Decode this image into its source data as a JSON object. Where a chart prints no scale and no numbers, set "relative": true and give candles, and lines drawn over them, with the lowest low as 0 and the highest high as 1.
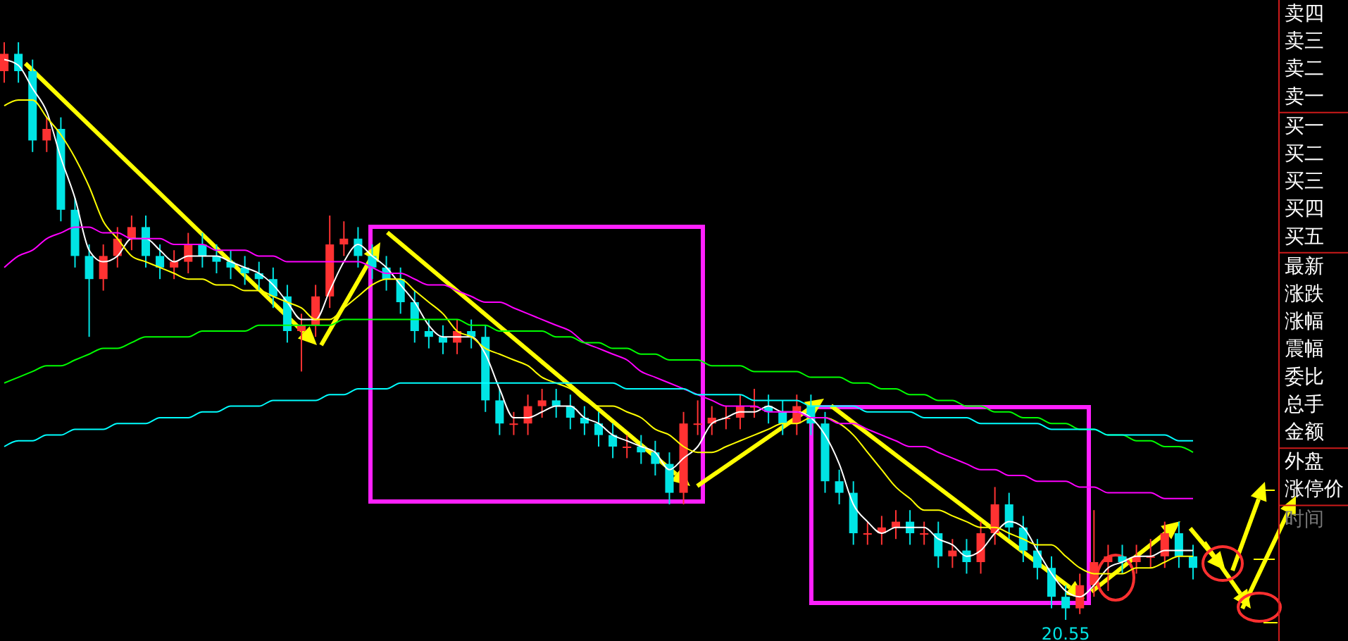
{
  "chart_data": [
    {
      "type": "candlestick",
      "relative": true,
      "categories": [
        null,
        null,
        null,
        null,
        null,
        null,
        null,
        null,
        null,
        null,
        null,
        null,
        null,
        null,
        null,
        null,
        null,
        null,
        null,
        null,
        null,
        null,
        null,
        null,
        null,
        null,
        null,
        null,
        null,
        null,
        null,
        null,
        null,
        null,
        null,
        null,
        null,
        null,
        null,
        null,
        null,
        null,
        null,
        null,
        null,
        null,
        null,
        null,
        null,
        null,
        null,
        null,
        null,
        null,
        null,
        null,
        null,
        null,
        null,
        null,
        null,
        null,
        null,
        null,
        null,
        null,
        null,
        null,
        null,
        null,
        null,
        null,
        null,
        null,
        null,
        null,
        null,
        null,
        null,
        null,
        null,
        null,
        null,
        null,
        null
      ],
      "ohlc": [
        [
          0.95,
          1.0,
          0.93,
          0.98
        ],
        [
          0.98,
          1.0,
          0.93,
          0.95
        ],
        [
          0.95,
          0.97,
          0.81,
          0.83
        ],
        [
          0.83,
          0.87,
          0.81,
          0.85
        ],
        [
          0.85,
          0.87,
          0.69,
          0.71
        ],
        [
          0.71,
          0.73,
          0.61,
          0.63
        ],
        [
          0.63,
          0.65,
          0.49,
          0.59
        ],
        [
          0.59,
          0.65,
          0.57,
          0.63
        ],
        [
          0.63,
          0.68,
          0.61,
          0.66
        ],
        [
          0.66,
          0.7,
          0.64,
          0.68
        ],
        [
          0.68,
          0.7,
          0.61,
          0.63
        ],
        [
          0.63,
          0.65,
          0.59,
          0.61
        ],
        [
          0.61,
          0.64,
          0.59,
          0.62
        ],
        [
          0.62,
          0.67,
          0.6,
          0.65
        ],
        [
          0.65,
          0.67,
          0.61,
          0.63
        ],
        [
          0.63,
          0.65,
          0.6,
          0.62
        ],
        [
          0.62,
          0.64,
          0.59,
          0.61
        ],
        [
          0.61,
          0.63,
          0.58,
          0.6
        ],
        [
          0.6,
          0.62,
          0.57,
          0.59
        ],
        [
          0.59,
          0.61,
          0.54,
          0.56
        ],
        [
          0.56,
          0.58,
          0.48,
          0.5
        ],
        [
          0.5,
          0.53,
          0.43,
          0.51
        ],
        [
          0.51,
          0.58,
          0.49,
          0.56
        ],
        [
          0.56,
          0.7,
          0.54,
          0.65
        ],
        [
          0.65,
          0.69,
          0.63,
          0.66
        ],
        [
          0.66,
          0.68,
          0.61,
          0.63
        ],
        [
          0.63,
          0.65,
          0.59,
          0.61
        ],
        [
          0.61,
          0.63,
          0.57,
          0.59
        ],
        [
          0.59,
          0.61,
          0.53,
          0.55
        ],
        [
          0.55,
          0.57,
          0.48,
          0.5
        ],
        [
          0.5,
          0.52,
          0.47,
          0.49
        ],
        [
          0.49,
          0.51,
          0.46,
          0.48
        ],
        [
          0.48,
          0.52,
          0.46,
          0.5
        ],
        [
          0.5,
          0.52,
          0.47,
          0.49
        ],
        [
          0.49,
          0.51,
          0.36,
          0.38
        ],
        [
          0.38,
          0.4,
          0.32,
          0.34
        ],
        [
          0.34,
          0.36,
          0.32,
          0.34
        ],
        [
          0.34,
          0.39,
          0.32,
          0.37
        ],
        [
          0.37,
          0.4,
          0.35,
          0.38
        ],
        [
          0.38,
          0.4,
          0.35,
          0.37
        ],
        [
          0.37,
          0.39,
          0.33,
          0.35
        ],
        [
          0.35,
          0.37,
          0.32,
          0.34
        ],
        [
          0.34,
          0.36,
          0.3,
          0.32
        ],
        [
          0.32,
          0.34,
          0.28,
          0.3
        ],
        [
          0.3,
          0.32,
          0.28,
          0.3
        ],
        [
          0.3,
          0.32,
          0.27,
          0.29
        ],
        [
          0.29,
          0.31,
          0.25,
          0.27
        ],
        [
          0.27,
          0.29,
          0.2,
          0.22
        ],
        [
          0.22,
          0.36,
          0.2,
          0.34
        ],
        [
          0.34,
          0.38,
          0.32,
          0.34
        ],
        [
          0.34,
          0.37,
          0.32,
          0.35
        ],
        [
          0.35,
          0.37,
          0.33,
          0.35
        ],
        [
          0.35,
          0.39,
          0.33,
          0.37
        ],
        [
          0.37,
          0.4,
          0.35,
          0.37
        ],
        [
          0.37,
          0.39,
          0.34,
          0.36
        ],
        [
          0.36,
          0.38,
          0.32,
          0.34
        ],
        [
          0.34,
          0.39,
          0.32,
          0.37
        ],
        [
          0.37,
          0.39,
          0.32,
          0.34
        ],
        [
          0.34,
          0.36,
          0.22,
          0.24
        ],
        [
          0.24,
          0.26,
          0.2,
          0.22
        ],
        [
          0.22,
          0.24,
          0.13,
          0.15
        ],
        [
          0.15,
          0.17,
          0.13,
          0.15
        ],
        [
          0.15,
          0.18,
          0.13,
          0.16
        ],
        [
          0.16,
          0.19,
          0.14,
          0.17
        ],
        [
          0.17,
          0.19,
          0.13,
          0.15
        ],
        [
          0.15,
          0.17,
          0.13,
          0.15
        ],
        [
          0.15,
          0.17,
          0.09,
          0.11
        ],
        [
          0.11,
          0.14,
          0.09,
          0.12
        ],
        [
          0.12,
          0.14,
          0.08,
          0.1
        ],
        [
          0.1,
          0.17,
          0.08,
          0.15
        ],
        [
          0.15,
          0.23,
          0.13,
          0.2
        ],
        [
          0.2,
          0.22,
          0.14,
          0.16
        ],
        [
          0.16,
          0.18,
          0.1,
          0.12
        ],
        [
          0.12,
          0.14,
          0.07,
          0.09
        ],
        [
          0.09,
          0.11,
          0.02,
          0.04
        ],
        [
          0.04,
          0.06,
          0.0,
          0.02
        ],
        [
          0.02,
          0.08,
          0.01,
          0.06
        ],
        [
          0.06,
          0.19,
          0.04,
          0.1
        ],
        [
          0.1,
          0.13,
          0.05,
          0.11
        ],
        [
          0.11,
          0.13,
          0.08,
          0.1
        ],
        [
          0.1,
          0.13,
          0.08,
          0.11
        ],
        [
          0.11,
          0.14,
          0.09,
          0.11
        ],
        [
          0.11,
          0.17,
          0.09,
          0.15
        ],
        [
          0.15,
          0.17,
          0.09,
          0.11
        ],
        [
          0.11,
          0.13,
          0.07,
          0.09
        ]
      ],
      "colors": [
        "#ff3232",
        "#00e4e4",
        "#00e4e4",
        "#ff3232",
        "#00e4e4",
        "#00e4e4",
        "#00e4e4",
        "#ff3232",
        "#ff3232",
        "#ff3232",
        "#00e4e4",
        "#00e4e4",
        "#ff3232",
        "#ff3232",
        "#00e4e4",
        "#00e4e4",
        "#00e4e4",
        "#00e4e4",
        "#00e4e4",
        "#00e4e4",
        "#00e4e4",
        "#ff3232",
        "#ff3232",
        "#ff3232",
        "#ff3232",
        "#00e4e4",
        "#00e4e4",
        "#00e4e4",
        "#00e4e4",
        "#00e4e4",
        "#00e4e4",
        "#00e4e4",
        "#ff3232",
        "#00e4e4",
        "#00e4e4",
        "#00e4e4",
        "#ff3232",
        "#ff3232",
        "#ff3232",
        "#00e4e4",
        "#00e4e4",
        "#00e4e4",
        "#00e4e4",
        "#00e4e4",
        "#ff3232",
        "#00e4e4",
        "#00e4e4",
        "#00e4e4",
        "#ff3232",
        "#ff3232",
        "#ff3232",
        "#ff3232",
        "#ff3232",
        "#ff3232",
        "#00e4e4",
        "#00e4e4",
        "#ff3232",
        "#00e4e4",
        "#00e4e4",
        "#00e4e4",
        "#00e4e4",
        "#ff3232",
        "#ff3232",
        "#ff3232",
        "#00e4e4",
        "#ff3232",
        "#00e4e4",
        "#ff3232",
        "#00e4e4",
        "#ff3232",
        "#ff3232",
        "#00e4e4",
        "#00e4e4",
        "#00e4e4",
        "#00e4e4",
        "#00e4e4",
        "#ff3232",
        "#ff3232",
        "#ff3232",
        "#00e4e4",
        "#ff3232",
        "#ff3232",
        "#ff3232",
        "#00e4e4",
        "#00e4e4"
      ],
      "series": [
        {
          "type": "line",
          "color": "#ffffff",
          "values": [
            0.97,
            0.96,
            0.92,
            0.88,
            0.8,
            0.73,
            0.64,
            0.62,
            0.63,
            0.66,
            0.66,
            0.64,
            0.62,
            0.63,
            0.63,
            0.63,
            0.62,
            0.61,
            0.6,
            0.58,
            0.55,
            0.52,
            0.52,
            0.57,
            0.62,
            0.65,
            0.63,
            0.61,
            0.58,
            0.55,
            0.51,
            0.49,
            0.49,
            0.49,
            0.46,
            0.4,
            0.35,
            0.35,
            0.36,
            0.37,
            0.37,
            0.35,
            0.34,
            0.32,
            0.31,
            0.3,
            0.29,
            0.26,
            0.28,
            0.3,
            0.34,
            0.35,
            0.36,
            0.36,
            0.37,
            0.36,
            0.36,
            0.35,
            0.32,
            0.27,
            0.2,
            0.17,
            0.15,
            0.16,
            0.16,
            0.16,
            0.14,
            0.13,
            0.11,
            0.12,
            0.15,
            0.17,
            0.16,
            0.12,
            0.08,
            0.05,
            0.04,
            0.06,
            0.09,
            0.1,
            0.11,
            0.11,
            0.12,
            0.12,
            0.12
          ]
        },
        {
          "type": "line",
          "color": "#ffff00",
          "values": [
            0.89,
            0.9,
            0.9,
            0.87,
            0.84,
            0.8,
            0.75,
            0.69,
            0.66,
            0.63,
            0.62,
            0.61,
            0.6,
            0.59,
            0.59,
            0.58,
            0.58,
            0.57,
            0.57,
            0.56,
            0.55,
            0.54,
            0.52,
            0.52,
            0.54,
            0.56,
            0.58,
            0.59,
            0.59,
            0.57,
            0.55,
            0.53,
            0.5,
            0.49,
            0.47,
            0.46,
            0.45,
            0.44,
            0.42,
            0.41,
            0.4,
            0.38,
            0.37,
            0.37,
            0.36,
            0.35,
            0.33,
            0.32,
            0.3,
            0.29,
            0.29,
            0.3,
            0.31,
            0.32,
            0.33,
            0.34,
            0.34,
            0.35,
            0.35,
            0.34,
            0.32,
            0.29,
            0.26,
            0.23,
            0.21,
            0.19,
            0.19,
            0.18,
            0.17,
            0.16,
            0.16,
            0.15,
            0.14,
            0.13,
            0.13,
            0.11,
            0.09,
            0.08,
            0.08,
            0.08,
            0.09,
            0.09,
            0.1,
            0.11,
            0.11
          ]
        },
        {
          "type": "line",
          "color": "#ff00ff",
          "values": [
            0.61,
            0.63,
            0.64,
            0.66,
            0.67,
            0.68,
            0.68,
            0.67,
            0.67,
            0.66,
            0.66,
            0.66,
            0.65,
            0.65,
            0.65,
            0.64,
            0.64,
            0.64,
            0.63,
            0.63,
            0.62,
            0.62,
            0.62,
            0.62,
            0.62,
            0.62,
            0.61,
            0.6,
            0.6,
            0.59,
            0.58,
            0.58,
            0.57,
            0.56,
            0.55,
            0.55,
            0.54,
            0.53,
            0.52,
            0.51,
            0.5,
            0.48,
            0.47,
            0.46,
            0.45,
            0.43,
            0.42,
            0.41,
            0.4,
            0.39,
            0.38,
            0.37,
            0.37,
            0.37,
            0.36,
            0.36,
            0.36,
            0.35,
            0.35,
            0.34,
            0.34,
            0.33,
            0.32,
            0.31,
            0.3,
            0.3,
            0.29,
            0.28,
            0.27,
            0.26,
            0.26,
            0.25,
            0.25,
            0.24,
            0.24,
            0.24,
            0.23,
            0.23,
            0.22,
            0.22,
            0.22,
            0.22,
            0.21,
            0.21,
            0.21
          ]
        },
        {
          "type": "line",
          "color": "#00ff00",
          "values": [
            0.41,
            0.42,
            0.43,
            0.44,
            0.44,
            0.45,
            0.46,
            0.47,
            0.47,
            0.48,
            0.49,
            0.49,
            0.49,
            0.49,
            0.5,
            0.5,
            0.5,
            0.5,
            0.51,
            0.51,
            0.51,
            0.51,
            0.51,
            0.51,
            0.52,
            0.52,
            0.52,
            0.52,
            0.52,
            0.52,
            0.52,
            0.52,
            0.52,
            0.51,
            0.51,
            0.5,
            0.5,
            0.5,
            0.5,
            0.49,
            0.49,
            0.48,
            0.48,
            0.47,
            0.47,
            0.46,
            0.46,
            0.45,
            0.45,
            0.45,
            0.44,
            0.44,
            0.44,
            0.43,
            0.43,
            0.43,
            0.43,
            0.42,
            0.42,
            0.42,
            0.41,
            0.41,
            0.4,
            0.4,
            0.39,
            0.39,
            0.38,
            0.38,
            0.37,
            0.37,
            0.36,
            0.36,
            0.35,
            0.35,
            0.34,
            0.34,
            0.33,
            0.33,
            0.32,
            0.32,
            0.31,
            0.31,
            0.3,
            0.3,
            0.29
          ]
        },
        {
          "type": "line",
          "color": "#00ffff",
          "values": [
            0.3,
            0.31,
            0.31,
            0.32,
            0.32,
            0.33,
            0.33,
            0.33,
            0.34,
            0.34,
            0.34,
            0.35,
            0.35,
            0.35,
            0.36,
            0.36,
            0.37,
            0.37,
            0.37,
            0.38,
            0.38,
            0.38,
            0.38,
            0.39,
            0.39,
            0.4,
            0.4,
            0.4,
            0.41,
            0.41,
            0.41,
            0.41,
            0.41,
            0.41,
            0.41,
            0.41,
            0.41,
            0.41,
            0.41,
            0.41,
            0.41,
            0.41,
            0.41,
            0.41,
            0.4,
            0.4,
            0.4,
            0.4,
            0.4,
            0.39,
            0.39,
            0.39,
            0.39,
            0.38,
            0.38,
            0.38,
            0.38,
            0.37,
            0.37,
            0.37,
            0.37,
            0.36,
            0.36,
            0.36,
            0.36,
            0.35,
            0.35,
            0.35,
            0.35,
            0.34,
            0.34,
            0.34,
            0.34,
            0.34,
            0.33,
            0.33,
            0.33,
            0.33,
            0.32,
            0.32,
            0.32,
            0.32,
            0.32,
            0.31,
            0.31
          ]
        }
      ],
      "annotations": [
        {
          "text": "20.55",
          "y": 0
        }
      ]
    },
    {
      "type": "other",
      "annotations": [
        "卖四",
        "卖三",
        "卖二",
        "卖一",
        "买一",
        "买二",
        "买三",
        "买四",
        "买五",
        "最新",
        "涨跌",
        "涨幅",
        "震幅",
        "委比",
        "总手",
        "金额",
        "外盘",
        "涨停价",
        "时间"
      ]
    }
  ]
}
